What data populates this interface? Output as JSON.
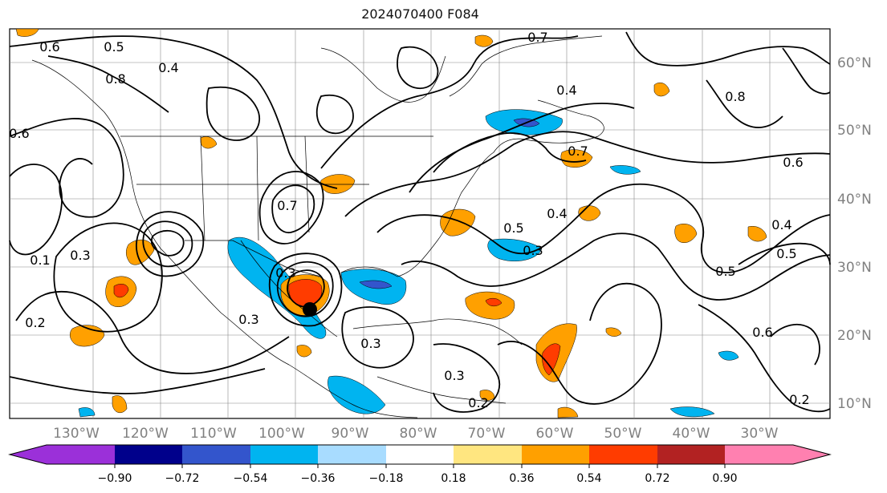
{
  "title": "2024070400 F084",
  "map": {
    "lon_labels": [
      "130°W",
      "120°W",
      "110°W",
      "100°W",
      "90°W",
      "80°W",
      "70°W",
      "60°W",
      "50°W",
      "40°W",
      "30°W"
    ],
    "lat_labels": [
      "60°N",
      "50°N",
      "40°N",
      "30°N",
      "20°N",
      "10°N"
    ],
    "contour_labels": [
      "0.6",
      "0.5",
      "0.8",
      "0.4",
      "0.3",
      "0.2",
      "0.1",
      "0.7",
      "0.6",
      "0.4",
      "0.8",
      "0.6",
      "0.7",
      "0.5",
      "0.3",
      "0.5",
      "0.4",
      "0.2",
      "0.6",
      "0.3",
      "0.7",
      "0.3",
      "0.3",
      "0.4",
      "0.5",
      "0.3",
      "0.2"
    ],
    "label_color": "#808080"
  },
  "colorbar": {
    "tick_labels": [
      "−0.90",
      "−0.72",
      "−0.54",
      "−0.36",
      "−0.18",
      "0.18",
      "0.36",
      "0.54",
      "0.72",
      "0.90"
    ],
    "colors": [
      "#9b30d9",
      "#00008b",
      "#3355cc",
      "#00b4f0",
      "#a8dcff",
      "#ffffff",
      "#ffe680",
      "#ffa000",
      "#ff3c00",
      "#b22222",
      "#ff80b0"
    ]
  }
}
